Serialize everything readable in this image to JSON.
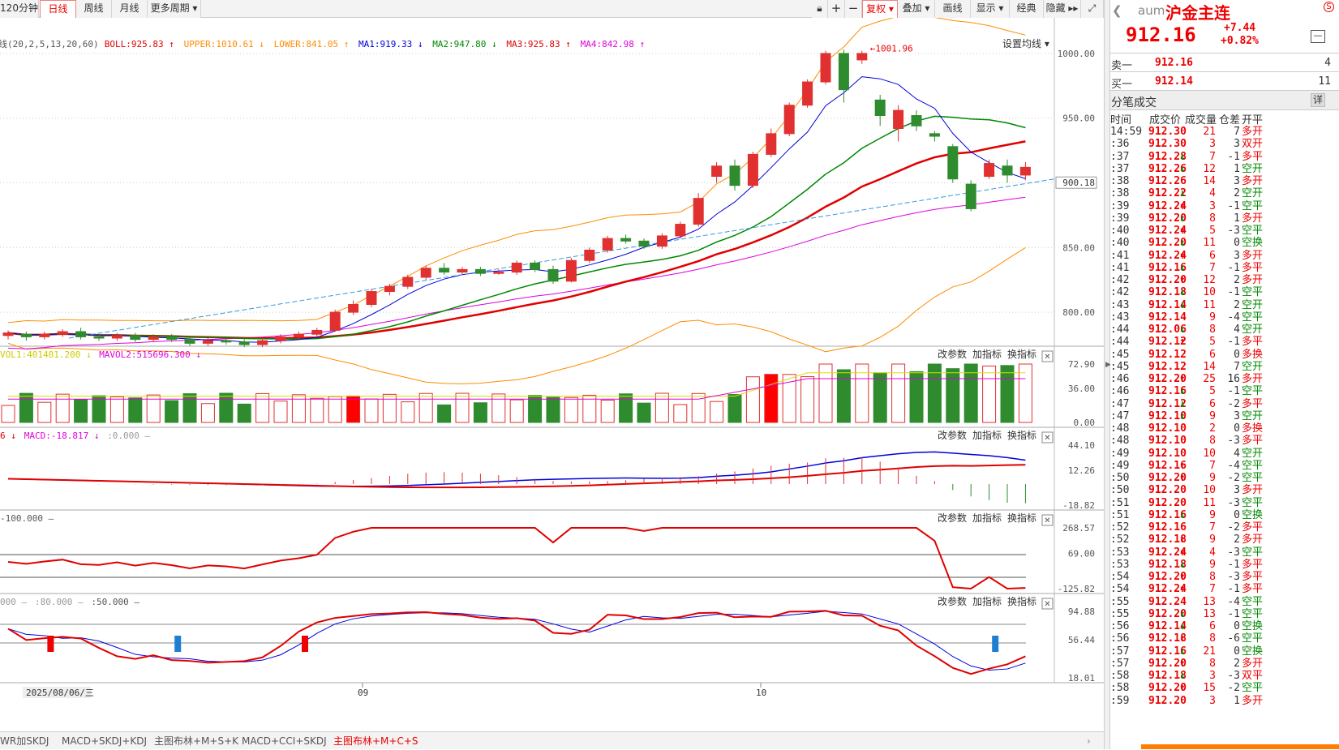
{
  "toolbar": {
    "periods": [
      "120分钟",
      "日线",
      "周线",
      "月线",
      "更多周期 ▾"
    ],
    "active_period": "日线",
    "right_buttons": [
      "复权 ▾",
      "叠加 ▾",
      "画线",
      "显示 ▾",
      "经典",
      "隐藏 ▸▸"
    ],
    "active_right": "复权 ▾"
  },
  "legend_main": [
    {
      "text": "线(20,2,5,13,20,60)",
      "color": "#555555"
    },
    {
      "text": "BOLL:925.83 ↑",
      "color": "#e00000"
    },
    {
      "text": "UPPER:1010.61 ↓",
      "color": "#ff8c00"
    },
    {
      "text": "LOWER:841.05 ↑",
      "color": "#ff8c00"
    },
    {
      "text": "MA1:919.33 ↓",
      "color": "#0000dd"
    },
    {
      "text": "MA2:947.80 ↓",
      "color": "#008800"
    },
    {
      "text": "MA3:925.83 ↑",
      "color": "#e00000"
    },
    {
      "text": "MA4:842.98 ↑",
      "color": "#dd00dd"
    }
  ],
  "ma_settings": "设置均线 ▾",
  "max_label": "1001.96",
  "current_price_label": "900.18",
  "price_axis": [
    "1000.00",
    "950.00",
    "900.00",
    "850.00",
    "800.00"
  ],
  "pane_buttons": [
    "改参数",
    "加指标",
    "换指标"
  ],
  "close_glyph": "✕",
  "volume_legend": [
    {
      "text": "VOL1:401401.200 ↓",
      "color": "#cccc00"
    },
    {
      "text": "MAVOL2:515696.300 ↓",
      "color": "#dd00dd"
    }
  ],
  "volume_axis": [
    "72.90",
    "36.00",
    "0.00"
  ],
  "macd_legend": [
    {
      "text": "6 ↓",
      "color": "#e00000"
    },
    {
      "text": "MACD:-18.817 ↓",
      "color": "#dd00dd"
    },
    {
      "text": ":0.000 –",
      "color": "#999999"
    }
  ],
  "macd_axis": [
    "44.10",
    "12.26",
    "-18.82"
  ],
  "cci_legend": [
    {
      "text": "-100.000 –",
      "color": "#555555"
    }
  ],
  "cci_axis": [
    "268.57",
    "69.00",
    "-125.82"
  ],
  "kdj_legend": [
    {
      "text": "000 –",
      "color": "#999999"
    },
    {
      "text": ":80.000 –",
      "color": "#999999"
    },
    {
      "text": ":50.000 –",
      "color": "#555555"
    }
  ],
  "kdj_axis": [
    "94.88",
    "56.44",
    "18.01"
  ],
  "time_axis": {
    "cursor_date": "2025/08/06/三",
    "labels": [
      "09",
      "10"
    ]
  },
  "bottom_tabs": [
    "WR加SKDJ",
    "MACD+SKDJ+KDJ",
    "主图布林+M+S+K",
    "MACD+CCI+SKDJ",
    "主图布林+M+C+S"
  ],
  "active_tab": "主图布林+M+C+S",
  "quote": {
    "code": "aum",
    "name": "沪金主连",
    "price": "912.16",
    "change": "+7.44",
    "change_pct": "+0.82%",
    "sell1": {
      "label": "卖一",
      "price": "912.16",
      "vol": "4"
    },
    "buy1": {
      "label": "买一",
      "price": "912.14",
      "vol": "11"
    },
    "trades_title": "分笔成交",
    "detail_btn": "详",
    "headers": [
      "时间",
      "成交价",
      "成交量",
      "仓差",
      "开平"
    ]
  },
  "trades": [
    [
      "14:59",
      "912.30",
      "",
      "21",
      "7",
      "多开"
    ],
    [
      ":36",
      "912.30",
      "",
      "3",
      "3",
      "双开"
    ],
    [
      ":37",
      "912.28",
      "↓",
      "7",
      "-1",
      "多平"
    ],
    [
      ":37",
      "912.26",
      "↓",
      "12",
      "1",
      "空开"
    ],
    [
      ":38",
      "912.26",
      "",
      "14",
      "3",
      "多开"
    ],
    [
      ":38",
      "912.22",
      "↓",
      "4",
      "2",
      "空开"
    ],
    [
      ":39",
      "912.24",
      "↑",
      "3",
      "-1",
      "空平"
    ],
    [
      ":39",
      "912.20",
      "↓",
      "8",
      "1",
      "多开"
    ],
    [
      ":40",
      "912.24",
      "↑",
      "5",
      "-3",
      "空平"
    ],
    [
      ":40",
      "912.20",
      "↓",
      "11",
      "0",
      "空换"
    ],
    [
      ":41",
      "912.24",
      "↑",
      "6",
      "3",
      "多开"
    ],
    [
      ":41",
      "912.16",
      "↓",
      "7",
      "-1",
      "多平"
    ],
    [
      ":42",
      "912.20",
      "↑",
      "12",
      "2",
      "多开"
    ],
    [
      ":42",
      "912.18",
      "↓",
      "10",
      "-1",
      "空平"
    ],
    [
      ":43",
      "912.14",
      "↓",
      "11",
      "2",
      "空开"
    ],
    [
      ":43",
      "912.14",
      "",
      "9",
      "-4",
      "空平"
    ],
    [
      ":44",
      "912.06",
      "↓",
      "8",
      "4",
      "空开"
    ],
    [
      ":44",
      "912.12",
      "↑",
      "5",
      "-1",
      "多平"
    ],
    [
      ":45",
      "912.12",
      "",
      "6",
      "0",
      "多换"
    ],
    [
      ":45",
      "912.12",
      "",
      "14",
      "7",
      "空开"
    ],
    [
      ":46",
      "912.20",
      "↑",
      "25",
      "16",
      "多开"
    ],
    [
      ":46",
      "912.16",
      "↓",
      "5",
      "-1",
      "空平"
    ],
    [
      ":47",
      "912.12",
      "↓",
      "6",
      "-2",
      "多平"
    ],
    [
      ":47",
      "912.10",
      "↓",
      "9",
      "3",
      "空开"
    ],
    [
      ":48",
      "912.10",
      "",
      "2",
      "0",
      "多换"
    ],
    [
      ":48",
      "912.10",
      "",
      "8",
      "-3",
      "多平"
    ],
    [
      ":49",
      "912.10",
      "",
      "10",
      "4",
      "空开"
    ],
    [
      ":49",
      "912.16",
      "↑",
      "7",
      "-4",
      "空平"
    ],
    [
      ":50",
      "912.20",
      "↑",
      "9",
      "-2",
      "空平"
    ],
    [
      ":50",
      "912.20",
      "",
      "10",
      "3",
      "多开"
    ],
    [
      ":51",
      "912.20",
      "",
      "11",
      "-3",
      "空平"
    ],
    [
      ":51",
      "912.16",
      "↓",
      "9",
      "0",
      "空换"
    ],
    [
      ":52",
      "912.16",
      "",
      "7",
      "-2",
      "多平"
    ],
    [
      ":52",
      "912.18",
      "↑",
      "9",
      "2",
      "多开"
    ],
    [
      ":53",
      "912.24",
      "↑",
      "4",
      "-3",
      "空平"
    ],
    [
      ":53",
      "912.18",
      "↓",
      "9",
      "-1",
      "多平"
    ],
    [
      ":54",
      "912.20",
      "↑",
      "8",
      "-3",
      "多平"
    ],
    [
      ":54",
      "912.24",
      "↑",
      "7",
      "-1",
      "多平"
    ],
    [
      ":55",
      "912.24",
      "",
      "13",
      "-4",
      "空平"
    ],
    [
      ":55",
      "912.20",
      "↓",
      "13",
      "-1",
      "空平"
    ],
    [
      ":56",
      "912.14",
      "↓",
      "6",
      "0",
      "空换"
    ],
    [
      ":56",
      "912.18",
      "↑",
      "8",
      "-6",
      "空平"
    ],
    [
      ":57",
      "912.16",
      "↓",
      "21",
      "0",
      "空换"
    ],
    [
      ":57",
      "912.20",
      "↑",
      "8",
      "2",
      "多开"
    ],
    [
      ":58",
      "912.18",
      "↓",
      "3",
      "-3",
      "双平"
    ],
    [
      ":58",
      "912.20",
      "↑",
      "15",
      "-2",
      "空平"
    ],
    [
      ":59",
      "912.20",
      "",
      "3",
      "1",
      "多开"
    ]
  ],
  "chart_data": {
    "type": "candlestick",
    "ylim": [
      780,
      1020
    ],
    "candles": [
      [
        782,
        784,
        779,
        786
      ],
      [
        783,
        781,
        778,
        785
      ],
      [
        781,
        783,
        779,
        785
      ],
      [
        783,
        785,
        781,
        787
      ],
      [
        785,
        781,
        779,
        788
      ],
      [
        781,
        780,
        778,
        783
      ],
      [
        780,
        782,
        778,
        784
      ],
      [
        782,
        779,
        777,
        784
      ],
      [
        779,
        781,
        777,
        783
      ],
      [
        781,
        779,
        777,
        783
      ],
      [
        779,
        776,
        774,
        781
      ],
      [
        776,
        778,
        774,
        780
      ],
      [
        778,
        777,
        775,
        780
      ],
      [
        777,
        775,
        773,
        779
      ],
      [
        775,
        778,
        773,
        780
      ],
      [
        778,
        781,
        776,
        783
      ],
      [
        781,
        783,
        779,
        785
      ],
      [
        783,
        786,
        781,
        788
      ],
      [
        786,
        800,
        785,
        802
      ],
      [
        800,
        806,
        798,
        809
      ],
      [
        806,
        816,
        804,
        818
      ],
      [
        816,
        820,
        813,
        822
      ],
      [
        820,
        827,
        818,
        829
      ],
      [
        827,
        834,
        825,
        836
      ],
      [
        834,
        831,
        829,
        838
      ],
      [
        831,
        833,
        829,
        835
      ],
      [
        833,
        830,
        828,
        835
      ],
      [
        830,
        831,
        829,
        833
      ],
      [
        831,
        838,
        829,
        840
      ],
      [
        838,
        833,
        831,
        840
      ],
      [
        833,
        824,
        822,
        836
      ],
      [
        824,
        840,
        823,
        842
      ],
      [
        840,
        848,
        838,
        850
      ],
      [
        848,
        857,
        846,
        859
      ],
      [
        857,
        855,
        853,
        860
      ],
      [
        855,
        851,
        849,
        857
      ],
      [
        851,
        859,
        849,
        861
      ],
      [
        859,
        868,
        857,
        870
      ],
      [
        868,
        888,
        866,
        892
      ],
      [
        905,
        913,
        900,
        916
      ],
      [
        913,
        898,
        894,
        918
      ],
      [
        898,
        922,
        896,
        924
      ],
      [
        922,
        938,
        920,
        942
      ],
      [
        938,
        960,
        936,
        962
      ],
      [
        960,
        978,
        958,
        980
      ],
      [
        978,
        1000,
        976,
        1002
      ],
      [
        1000,
        972,
        962,
        1003
      ],
      [
        995,
        1000,
        992,
        1002
      ],
      [
        964,
        952,
        944,
        968
      ],
      [
        942,
        956,
        932,
        960
      ],
      [
        952,
        944,
        940,
        956
      ],
      [
        938,
        936,
        932,
        940
      ],
      [
        928,
        903,
        900,
        930
      ],
      [
        899,
        880,
        878,
        902
      ],
      [
        905,
        915,
        903,
        918
      ],
      [
        913,
        906,
        900,
        918
      ],
      [
        906,
        912,
        902,
        916
      ]
    ]
  }
}
